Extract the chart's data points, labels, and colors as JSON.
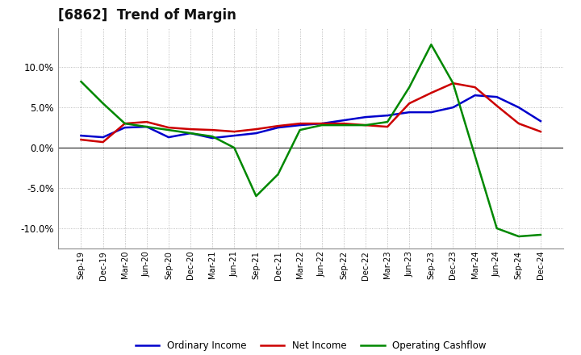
{
  "title": "[6862]  Trend of Margin",
  "title_fontsize": 12,
  "background_color": "#ffffff",
  "plot_bg_color": "#ffffff",
  "grid_color": "#888888",
  "x_labels": [
    "Sep-19",
    "Dec-19",
    "Mar-20",
    "Jun-20",
    "Sep-20",
    "Dec-20",
    "Mar-21",
    "Jun-21",
    "Sep-21",
    "Dec-21",
    "Mar-22",
    "Jun-22",
    "Sep-22",
    "Dec-22",
    "Mar-23",
    "Jun-23",
    "Sep-23",
    "Dec-23",
    "Mar-24",
    "Jun-24",
    "Sep-24",
    "Dec-24"
  ],
  "ordinary_income": [
    0.015,
    0.013,
    0.025,
    0.026,
    0.013,
    0.018,
    0.012,
    0.015,
    0.018,
    0.025,
    0.028,
    0.03,
    0.034,
    0.038,
    0.04,
    0.044,
    0.044,
    0.05,
    0.065,
    0.063,
    0.05,
    0.033
  ],
  "net_income": [
    0.01,
    0.007,
    0.03,
    0.032,
    0.025,
    0.023,
    0.022,
    0.02,
    0.023,
    0.027,
    0.03,
    0.03,
    0.03,
    0.028,
    0.026,
    0.055,
    0.068,
    0.08,
    0.075,
    0.052,
    0.03,
    0.02
  ],
  "operating_cf": [
    0.082,
    0.055,
    0.03,
    0.026,
    0.022,
    0.018,
    0.014,
    0.0,
    -0.06,
    -0.033,
    0.022,
    0.028,
    0.028,
    0.028,
    0.032,
    0.075,
    0.128,
    0.08,
    -0.01,
    -0.1,
    -0.11,
    -0.108
  ],
  "line_colors": {
    "ordinary_income": "#0000cc",
    "net_income": "#cc0000",
    "operating_cf": "#008800"
  },
  "line_width": 1.8,
  "ylim": [
    -0.125,
    0.148
  ],
  "yticks": [
    -0.1,
    -0.05,
    0.0,
    0.05,
    0.1
  ],
  "legend_labels": [
    "Ordinary Income",
    "Net Income",
    "Operating Cashflow"
  ]
}
